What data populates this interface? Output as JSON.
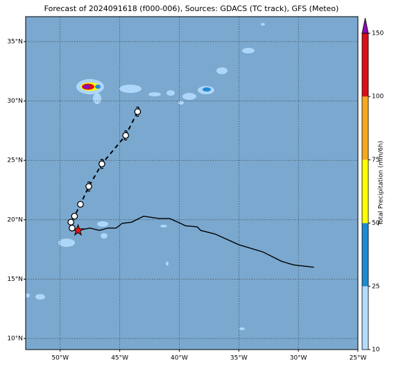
{
  "chart_data": {
    "type": "map",
    "title": "Forecast of 2024091618 (f000-006), Sources: GDACS (TC track), GFS (Meteo)",
    "xlim": [
      -52.9,
      -25
    ],
    "ylim": [
      9.07,
      37.1
    ],
    "xticks": [
      {
        "value": -50,
        "label": "50°W"
      },
      {
        "value": -45,
        "label": "45°W"
      },
      {
        "value": -40,
        "label": "40°W"
      },
      {
        "value": -35,
        "label": "35°W"
      },
      {
        "value": -30,
        "label": "30°W"
      },
      {
        "value": -25,
        "label": "25°W"
      }
    ],
    "yticks": [
      {
        "value": 10,
        "label": "10°N"
      },
      {
        "value": 15,
        "label": "15°N"
      },
      {
        "value": 20,
        "label": "20°N"
      },
      {
        "value": 25,
        "label": "25°N"
      },
      {
        "value": 30,
        "label": "30°N"
      },
      {
        "value": 35,
        "label": "35°N"
      }
    ],
    "grid": true,
    "forecast_track": {
      "lon": [
        -48.5,
        -49.0,
        -49.1,
        -48.8,
        -48.3,
        -47.6,
        -46.5,
        -44.5,
        -43.5
      ],
      "lat": [
        19.1,
        19.3,
        19.8,
        20.3,
        21.3,
        22.8,
        24.7,
        27.1,
        29.1
      ],
      "color": "#000000"
    },
    "past_track": {
      "lon": [
        -48.5,
        -47.5,
        -46.7,
        -46.0,
        -45.3,
        -44.8,
        -44.0,
        -43.0,
        -41.7,
        -40.8,
        -39.9,
        -39.5,
        -38.5,
        -38.2,
        -37.0,
        -35.0,
        -33.0,
        -31.4,
        -30.4,
        -28.7
      ],
      "lat": [
        19.1,
        19.3,
        19.1,
        19.3,
        19.3,
        19.7,
        19.8,
        20.3,
        20.1,
        20.1,
        19.7,
        19.5,
        19.4,
        19.1,
        18.8,
        17.9,
        17.3,
        16.5,
        16.2,
        16.0
      ],
      "color": "#000000"
    },
    "colorbar": {
      "label": "Total Precipitation (mm/6h)",
      "ticks": [
        10,
        25,
        50,
        75,
        100,
        150
      ],
      "colors": [
        "#b4dcfa",
        "#1e8ad2",
        "#ffff00",
        "#f8a820",
        "#d9101a"
      ],
      "extend_color": "#8a10b0"
    }
  }
}
